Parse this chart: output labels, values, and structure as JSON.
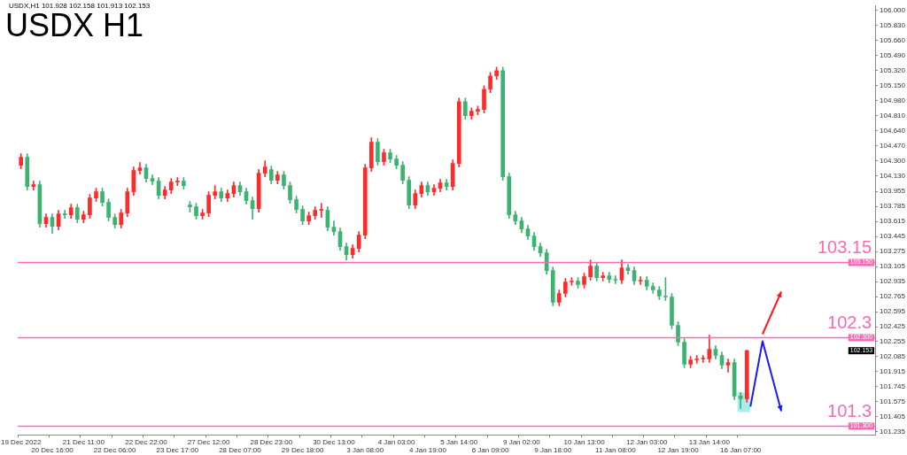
{
  "chart_data": {
    "type": "candlestick",
    "title": "USDX H1",
    "subtitle": "USDX,H1  101.928 102.158 101.913 102.153",
    "categories": [
      "19 Dec 2022",
      null,
      null,
      null,
      null,
      "20 Dec 16:00",
      null,
      null,
      null,
      null,
      "21 Dec 11:00",
      null,
      null,
      null,
      null,
      "22 Dec 06:00",
      null,
      null,
      null,
      null,
      "22 Dec 22:00",
      null,
      null,
      null,
      null,
      "23 Dec 17:00",
      null,
      null,
      null,
      null,
      "27 Dec 12:00",
      null,
      null,
      null,
      null,
      "28 Dec 07:00",
      null,
      null,
      null,
      null,
      "28 Dec 23:00",
      null,
      null,
      null,
      null,
      "29 Dec 18:00",
      null,
      null,
      null,
      null,
      "30 Dec 13:00",
      null,
      null,
      null,
      null,
      "3 Jan 08:00",
      null,
      null,
      null,
      null,
      "4 Jan 03:00",
      null,
      null,
      null,
      null,
      "4 Jan 19:00",
      null,
      null,
      null,
      null,
      "5 Jan 14:00",
      null,
      null,
      null,
      null,
      "6 Jan 09:00",
      null,
      null,
      null,
      null,
      "9 Jan 02:00",
      null,
      null,
      null,
      null,
      "9 Jan 18:00",
      null,
      null,
      null,
      null,
      "10 Jan 13:00",
      null,
      null,
      null,
      null,
      "11 Jan 08:00",
      null,
      null,
      null,
      null,
      "12 Jan 03:00",
      null,
      null,
      null,
      null,
      "12 Jan 19:00",
      null,
      null,
      null,
      null,
      "13 Jan 14:00",
      null,
      null,
      null,
      null,
      "16 Jan 07:00",
      null,
      null,
      null,
      null,
      null,
      null,
      null,
      null,
      null,
      null,
      null,
      null,
      null,
      null,
      null,
      null,
      null,
      null,
      null,
      null,
      null
    ],
    "ohlc": [
      [
        104.25,
        104.38,
        104.21,
        104.34
      ],
      [
        104.34,
        104.38,
        103.97,
        104.01
      ],
      [
        104.01,
        104.07,
        103.97,
        104.03
      ],
      [
        104.03,
        104.07,
        103.55,
        103.59
      ],
      [
        103.59,
        103.7,
        103.55,
        103.66
      ],
      [
        103.66,
        103.7,
        103.48,
        103.56
      ],
      [
        103.56,
        103.74,
        103.52,
        103.7
      ],
      [
        103.7,
        103.74,
        103.65,
        103.69
      ],
      [
        103.69,
        103.81,
        103.65,
        103.77
      ],
      [
        103.77,
        103.81,
        103.6,
        103.64
      ],
      [
        103.64,
        103.73,
        103.6,
        103.69
      ],
      [
        103.69,
        103.92,
        103.65,
        103.88
      ],
      [
        103.88,
        103.99,
        103.84,
        103.95
      ],
      [
        103.95,
        103.99,
        103.79,
        103.83
      ],
      [
        103.83,
        103.87,
        103.62,
        103.66
      ],
      [
        103.66,
        103.7,
        103.54,
        103.58
      ],
      [
        103.58,
        103.75,
        103.54,
        103.71
      ],
      [
        103.71,
        103.99,
        103.67,
        103.95
      ],
      [
        103.95,
        104.23,
        103.91,
        104.19
      ],
      [
        104.19,
        104.28,
        104.15,
        104.22
      ],
      [
        104.22,
        104.26,
        104.06,
        104.1
      ],
      [
        104.1,
        104.14,
        104.03,
        104.07
      ],
      [
        104.07,
        104.11,
        103.87,
        103.91
      ],
      [
        103.91,
        104.01,
        103.87,
        103.97
      ],
      [
        103.97,
        104.1,
        103.93,
        104.06
      ],
      [
        104.06,
        104.11,
        104.02,
        104.07
      ],
      [
        104.07,
        104.11,
        103.98,
        104.02
      ],
      [
        103.8,
        103.84,
        103.72,
        103.78
      ],
      [
        103.78,
        103.82,
        103.64,
        103.68
      ],
      [
        103.68,
        103.75,
        103.64,
        103.71
      ],
      [
        103.71,
        103.95,
        103.67,
        103.91
      ],
      [
        103.91,
        104.02,
        103.87,
        103.95
      ],
      [
        103.95,
        103.99,
        103.84,
        103.88
      ],
      [
        103.88,
        103.97,
        103.84,
        103.93
      ],
      [
        103.93,
        104.06,
        103.89,
        104.02
      ],
      [
        104.02,
        104.06,
        103.91,
        103.95
      ],
      [
        103.95,
        103.99,
        103.81,
        103.85
      ],
      [
        103.85,
        103.89,
        103.64,
        103.76
      ],
      [
        103.76,
        104.2,
        103.72,
        104.16
      ],
      [
        104.16,
        104.3,
        104.12,
        104.23
      ],
      [
        104.2,
        104.24,
        104.04,
        104.08
      ],
      [
        104.08,
        104.18,
        104.04,
        104.14
      ],
      [
        104.14,
        104.18,
        103.98,
        104.02
      ],
      [
        104.02,
        104.06,
        103.82,
        103.86
      ],
      [
        103.86,
        103.9,
        103.71,
        103.75
      ],
      [
        103.75,
        103.79,
        103.58,
        103.62
      ],
      [
        103.62,
        103.72,
        103.58,
        103.68
      ],
      [
        103.68,
        103.78,
        103.64,
        103.74
      ],
      [
        103.74,
        103.82,
        103.66,
        103.74
      ],
      [
        103.74,
        103.78,
        103.51,
        103.55
      ],
      [
        103.55,
        103.62,
        103.46,
        103.5
      ],
      [
        103.5,
        103.54,
        103.29,
        103.33
      ],
      [
        103.33,
        103.37,
        103.18,
        103.24
      ],
      [
        103.24,
        103.35,
        103.2,
        103.31
      ],
      [
        103.31,
        103.5,
        103.27,
        103.46
      ],
      [
        103.46,
        104.26,
        103.42,
        104.22
      ],
      [
        104.22,
        104.56,
        104.18,
        104.51
      ],
      [
        104.51,
        104.55,
        104.25,
        104.29
      ],
      [
        104.29,
        104.43,
        104.25,
        104.39
      ],
      [
        104.39,
        104.43,
        104.28,
        104.32
      ],
      [
        104.32,
        104.36,
        104.21,
        104.25
      ],
      [
        104.25,
        104.29,
        104.04,
        104.08
      ],
      [
        104.08,
        104.12,
        103.76,
        103.8
      ],
      [
        103.8,
        103.97,
        103.76,
        103.93
      ],
      [
        103.93,
        104.06,
        103.89,
        104.02
      ],
      [
        104.02,
        104.06,
        103.91,
        103.95
      ],
      [
        103.95,
        104.03,
        103.91,
        103.99
      ],
      [
        103.99,
        104.09,
        103.95,
        104.05
      ],
      [
        104.05,
        104.09,
        103.97,
        104.01
      ],
      [
        104.01,
        104.31,
        103.97,
        104.27
      ],
      [
        104.27,
        105.01,
        104.23,
        104.97
      ],
      [
        104.97,
        105.01,
        104.77,
        104.81
      ],
      [
        104.81,
        104.9,
        104.77,
        104.86
      ],
      [
        104.86,
        104.92,
        104.82,
        104.88
      ],
      [
        104.88,
        105.15,
        104.84,
        105.11
      ],
      [
        105.11,
        105.3,
        105.07,
        105.26
      ],
      [
        105.26,
        105.36,
        105.22,
        105.32
      ],
      [
        105.32,
        105.36,
        104.08,
        104.12
      ],
      [
        104.12,
        104.16,
        103.65,
        103.69
      ],
      [
        103.69,
        103.73,
        103.58,
        103.62
      ],
      [
        103.62,
        103.66,
        103.49,
        103.53
      ],
      [
        103.53,
        103.57,
        103.41,
        103.45
      ],
      [
        103.45,
        103.49,
        103.29,
        103.33
      ],
      [
        103.33,
        103.37,
        103.22,
        103.26
      ],
      [
        103.26,
        103.3,
        103.02,
        103.06
      ],
      [
        103.06,
        103.1,
        102.66,
        102.7
      ],
      [
        102.7,
        102.84,
        102.66,
        102.8
      ],
      [
        102.8,
        102.97,
        102.76,
        102.93
      ],
      [
        102.93,
        102.98,
        102.89,
        102.94
      ],
      [
        102.94,
        102.98,
        102.86,
        102.9
      ],
      [
        102.9,
        103.03,
        102.86,
        102.99
      ],
      [
        102.99,
        103.18,
        102.95,
        103.11
      ],
      [
        103.11,
        103.15,
        102.94,
        102.98
      ],
      [
        102.98,
        103.04,
        102.94,
        103.0
      ],
      [
        103.0,
        103.04,
        102.92,
        102.96
      ],
      [
        102.96,
        103.0,
        102.91,
        102.95
      ],
      [
        102.95,
        103.18,
        102.91,
        103.09
      ],
      [
        103.09,
        103.13,
        103.02,
        103.06
      ],
      [
        103.06,
        103.1,
        102.9,
        102.94
      ],
      [
        102.94,
        102.99,
        102.9,
        102.95
      ],
      [
        102.95,
        102.99,
        102.84,
        102.88
      ],
      [
        102.88,
        102.92,
        102.8,
        102.84
      ],
      [
        102.84,
        102.88,
        102.73,
        102.77
      ],
      [
        102.77,
        102.98,
        102.72,
        102.76
      ],
      [
        102.76,
        102.8,
        102.4,
        102.44
      ],
      [
        102.44,
        102.48,
        102.21,
        102.25
      ],
      [
        102.25,
        102.29,
        101.96,
        102.0
      ],
      [
        102.0,
        102.09,
        101.96,
        102.05
      ],
      [
        102.05,
        102.1,
        102.01,
        102.06
      ],
      [
        102.06,
        102.1,
        102.02,
        102.06
      ],
      [
        102.06,
        102.33,
        102.02,
        102.17
      ],
      [
        102.17,
        102.21,
        102.06,
        102.1
      ],
      [
        102.1,
        102.14,
        101.95,
        101.99
      ],
      [
        101.99,
        102.06,
        101.91,
        102.02
      ],
      [
        102.02,
        102.06,
        101.6,
        101.64
      ],
      [
        101.64,
        101.68,
        101.5,
        101.61
      ],
      [
        101.61,
        102.16,
        101.57,
        102.153
      ],
      null,
      null,
      null,
      null,
      null,
      null,
      null,
      null,
      null,
      null,
      null,
      null,
      null,
      null,
      null,
      null,
      null,
      null,
      null,
      null
    ],
    "ylim": [
      101.2,
      106.05
    ],
    "yticks": [
      {
        "value": 106,
        "label": "106.000"
      },
      {
        "value": 105.83,
        "label": "105.830"
      },
      {
        "value": 105.66,
        "label": "105.660"
      },
      {
        "value": 105.49,
        "label": "105.490"
      },
      {
        "value": 105.32,
        "label": "105.320"
      },
      {
        "value": 105.15,
        "label": "105.150"
      },
      {
        "value": 104.98,
        "label": "104.980"
      },
      {
        "value": 104.81,
        "label": "104.810"
      },
      {
        "value": 104.64,
        "label": "104.640"
      },
      {
        "value": 104.47,
        "label": "104.470"
      },
      {
        "value": 104.3,
        "label": "104.300"
      },
      {
        "value": 104.13,
        "label": "104.130"
      },
      {
        "value": 103.955,
        "label": "103.955"
      },
      {
        "value": 103.785,
        "label": "103.785"
      },
      {
        "value": 103.615,
        "label": "103.615"
      },
      {
        "value": 103.445,
        "label": "103.445"
      },
      {
        "value": 103.275,
        "label": "103.275"
      },
      {
        "value": 103.105,
        "label": "103.105"
      },
      {
        "value": 102.935,
        "label": "102.935"
      },
      {
        "value": 102.765,
        "label": "102.765"
      },
      {
        "value": 102.595,
        "label": "102.595"
      },
      {
        "value": 102.425,
        "label": "102.425"
      },
      {
        "value": 102.255,
        "label": "102.255"
      },
      {
        "value": 102.085,
        "label": "102.085"
      },
      {
        "value": 101.915,
        "label": "101.915"
      },
      {
        "value": 101.745,
        "label": "101.745"
      },
      {
        "value": 101.575,
        "label": "101.575"
      },
      {
        "value": 101.405,
        "label": "101.405"
      },
      {
        "value": 101.235,
        "label": "101.235"
      }
    ],
    "ref_lines": [
      {
        "axis": "y",
        "value": 103.15,
        "label": "103.15",
        "color": "#ff69b4"
      },
      {
        "axis": "y",
        "value": 102.3,
        "label": "102.3",
        "color": "#ff69b4"
      },
      {
        "axis": "y",
        "value": 101.3,
        "label": "101.3",
        "color": "#ff69b4"
      }
    ],
    "annotations": [
      "103.150",
      "102.300",
      "102.153",
      "101.300"
    ],
    "grid": false,
    "legend": false
  }
}
